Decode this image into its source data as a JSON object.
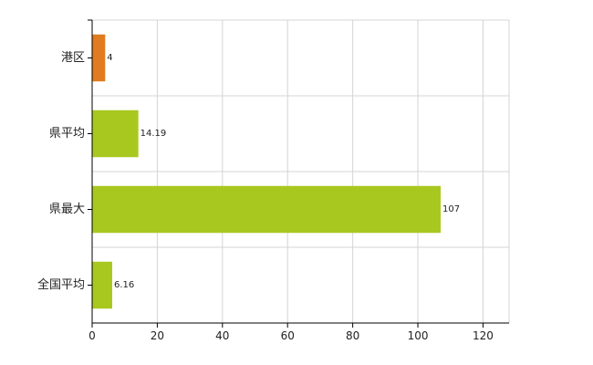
{
  "chart_data": {
    "type": "bar",
    "orientation": "horizontal",
    "categories": [
      "港区",
      "県平均",
      "県最大",
      "全国平均"
    ],
    "values": [
      4,
      14.19,
      107,
      6.16
    ],
    "data_labels": [
      "4",
      "14.19",
      "107",
      "6.16"
    ],
    "bar_colors": [
      "#e07b20",
      "#a8c820",
      "#a8c820",
      "#a8c820"
    ],
    "xlim": [
      0,
      128
    ],
    "x_ticks": [
      0,
      20,
      40,
      60,
      80,
      100,
      120
    ],
    "grid": true,
    "legend": "none",
    "title": "",
    "xlabel": "",
    "ylabel": ""
  }
}
